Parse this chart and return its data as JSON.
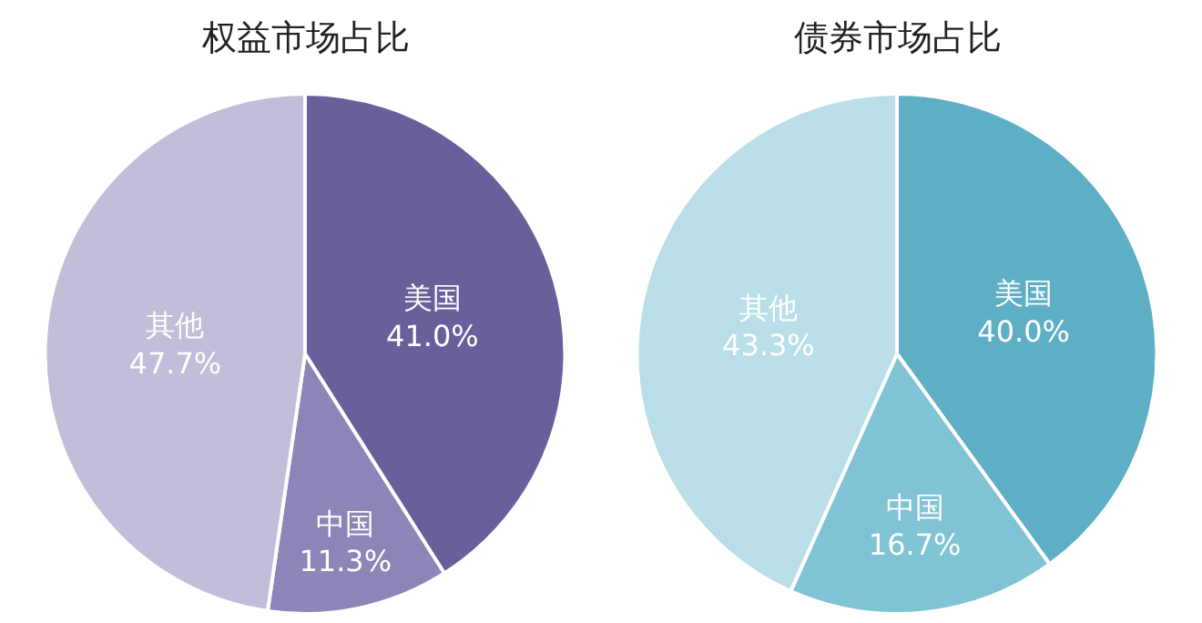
{
  "chart_data": [
    {
      "type": "pie",
      "title": "权益市场占比",
      "categories": [
        "美国",
        "中国",
        "其他"
      ],
      "values": [
        41.0,
        11.3,
        47.7
      ],
      "value_labels": [
        "41.0%",
        "11.3%",
        "47.7%"
      ],
      "colors": [
        "#6a5f9a",
        "#8d84b8",
        "#c2bdd8"
      ]
    },
    {
      "type": "pie",
      "title": "债券市场占比",
      "categories": [
        "美国",
        "中国",
        "其他"
      ],
      "values": [
        40.0,
        16.7,
        43.3
      ],
      "value_labels": [
        "40.0%",
        "16.7%",
        "43.3%"
      ],
      "colors": [
        "#5eafc5",
        "#7fc3d4",
        "#b9dee7"
      ]
    }
  ]
}
